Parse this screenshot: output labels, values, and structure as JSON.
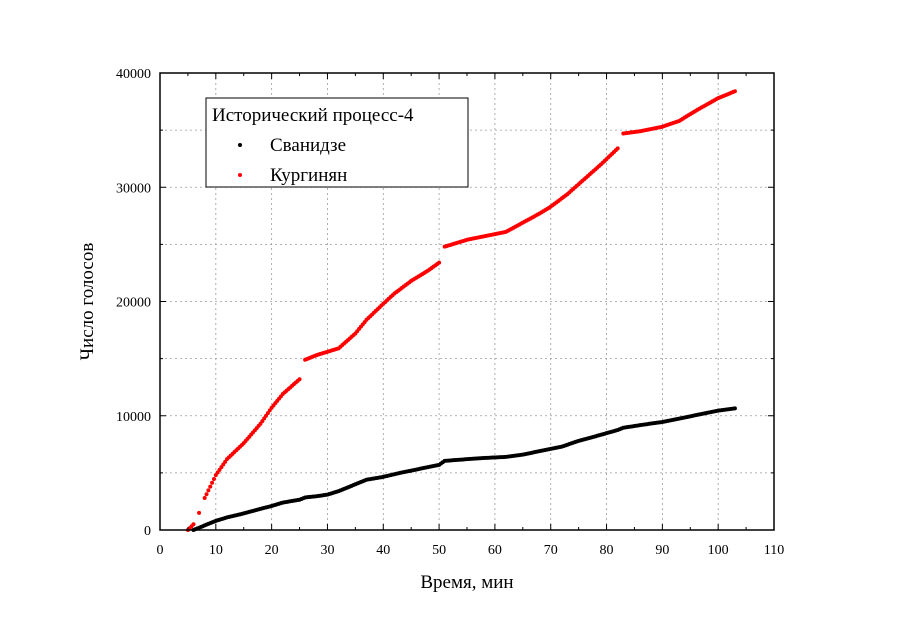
{
  "chart_data": {
    "type": "scatter",
    "title": "",
    "xlabel": "Время, мин",
    "ylabel": "Число голосов",
    "xlim": [
      0,
      110
    ],
    "ylim": [
      0,
      40000
    ],
    "x_ticks": [
      0,
      10,
      20,
      30,
      40,
      50,
      60,
      70,
      80,
      90,
      100,
      110
    ],
    "y_ticks": [
      0,
      10000,
      20000,
      30000,
      40000
    ],
    "x_tick_labels": [
      "0",
      "10",
      "20",
      "30",
      "40",
      "50",
      "60",
      "70",
      "80",
      "90",
      "100",
      "110"
    ],
    "y_tick_labels": [
      "0",
      "10000",
      "20000",
      "30000",
      "40000"
    ],
    "grid": true,
    "legend": {
      "title": "Исторический процесс-4",
      "placement": "top-left",
      "entries": [
        "Сванидзе",
        "Кургинян"
      ]
    },
    "series": [
      {
        "name": "Сванидзе",
        "color": "#000000",
        "points": [
          [
            6,
            0
          ],
          [
            7,
            200
          ],
          [
            8,
            400
          ],
          [
            10,
            800
          ],
          [
            12,
            1100
          ],
          [
            15,
            1450
          ],
          [
            18,
            1850
          ],
          [
            20,
            2100
          ],
          [
            22,
            2400
          ],
          [
            25,
            2650
          ],
          [
            26,
            2850
          ],
          [
            28,
            2950
          ],
          [
            30,
            3100
          ],
          [
            32,
            3400
          ],
          [
            35,
            4000
          ],
          [
            37,
            4400
          ],
          [
            40,
            4650
          ],
          [
            43,
            5000
          ],
          [
            46,
            5300
          ],
          [
            48,
            5500
          ],
          [
            50,
            5700
          ],
          [
            51,
            6050
          ],
          [
            55,
            6200
          ],
          [
            58,
            6300
          ],
          [
            62,
            6400
          ],
          [
            65,
            6600
          ],
          [
            68,
            6900
          ],
          [
            72,
            7300
          ],
          [
            75,
            7800
          ],
          [
            78,
            8200
          ],
          [
            82,
            8750
          ],
          [
            83,
            8950
          ],
          [
            87,
            9250
          ],
          [
            90,
            9450
          ],
          [
            93,
            9750
          ],
          [
            96,
            10050
          ],
          [
            100,
            10450
          ],
          [
            103,
            10650
          ]
        ]
      },
      {
        "name": "Кургинян",
        "color": "#ff0000",
        "points": [
          [
            5,
            0
          ],
          [
            6,
            500
          ],
          [
            7,
            1500
          ],
          [
            8,
            2800
          ],
          [
            10,
            4800
          ],
          [
            12,
            6200
          ],
          [
            15,
            7600
          ],
          [
            18,
            9300
          ],
          [
            20,
            10700
          ],
          [
            22,
            11900
          ],
          [
            25,
            13200
          ],
          [
            26,
            14900
          ],
          [
            28,
            15300
          ],
          [
            30,
            15600
          ],
          [
            32,
            15900
          ],
          [
            35,
            17200
          ],
          [
            37,
            18400
          ],
          [
            40,
            19800
          ],
          [
            42,
            20700
          ],
          [
            45,
            21800
          ],
          [
            48,
            22700
          ],
          [
            50,
            23400
          ],
          [
            51,
            24800
          ],
          [
            55,
            25400
          ],
          [
            58,
            25700
          ],
          [
            62,
            26100
          ],
          [
            65,
            26900
          ],
          [
            68,
            27700
          ],
          [
            70,
            28300
          ],
          [
            73,
            29400
          ],
          [
            76,
            30700
          ],
          [
            79,
            32000
          ],
          [
            82,
            33400
          ],
          [
            83,
            34700
          ],
          [
            86,
            34900
          ],
          [
            90,
            35300
          ],
          [
            93,
            35800
          ],
          [
            96,
            36700
          ],
          [
            100,
            37800
          ],
          [
            103,
            38400
          ]
        ]
      }
    ]
  }
}
